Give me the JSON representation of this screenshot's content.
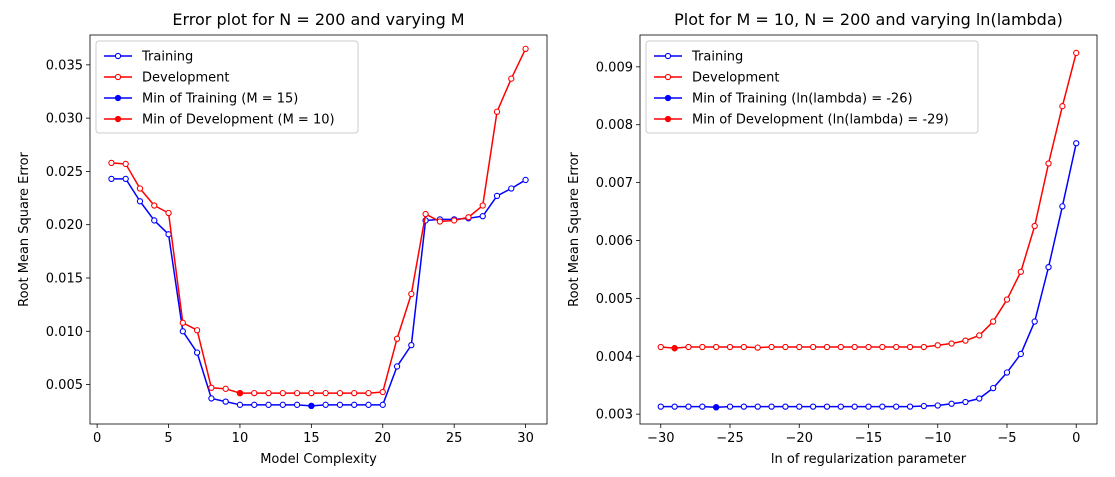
{
  "chart_data": [
    {
      "type": "line",
      "title": "Error plot for N = 200 and varying M",
      "xlabel": "Model Complexity",
      "ylabel": "Root Mean Square Error",
      "xlim": [
        -0.5,
        31.5
      ],
      "ylim": [
        0.0013,
        0.0378
      ],
      "xticks": [
        0,
        5,
        10,
        15,
        20,
        25,
        30
      ],
      "yticks": [
        0.005,
        0.01,
        0.015,
        0.02,
        0.025,
        0.03,
        0.035
      ],
      "ytick_labels": [
        "0.005",
        "0.010",
        "0.015",
        "0.020",
        "0.025",
        "0.030",
        "0.035"
      ],
      "grid": false,
      "legend_position": "upper-left",
      "series": [
        {
          "name": "Training",
          "color": "#0000ff",
          "marker": "open-circle",
          "x": [
            1,
            2,
            3,
            4,
            5,
            6,
            7,
            8,
            9,
            10,
            11,
            12,
            13,
            14,
            15,
            16,
            17,
            18,
            19,
            20,
            21,
            22,
            23,
            24,
            25,
            26,
            27,
            28,
            29,
            30
          ],
          "values": [
            0.0243,
            0.0243,
            0.0222,
            0.0204,
            0.0191,
            0.01,
            0.008,
            0.0037,
            0.0034,
            0.0031,
            0.0031,
            0.0031,
            0.0031,
            0.0031,
            0.003,
            0.0031,
            0.0031,
            0.0031,
            0.0031,
            0.0031,
            0.0067,
            0.0087,
            0.0204,
            0.0205,
            0.0205,
            0.0206,
            0.0208,
            0.0227,
            0.0234,
            0.0242
          ]
        },
        {
          "name": "Development",
          "color": "#ff0000",
          "marker": "open-circle",
          "x": [
            1,
            2,
            3,
            4,
            5,
            6,
            7,
            8,
            9,
            10,
            11,
            12,
            13,
            14,
            15,
            16,
            17,
            18,
            19,
            20,
            21,
            22,
            23,
            24,
            25,
            26,
            27,
            28,
            29,
            30
          ],
          "values": [
            0.0258,
            0.0257,
            0.0234,
            0.0218,
            0.0211,
            0.0108,
            0.0101,
            0.0047,
            0.0046,
            0.0042,
            0.0042,
            0.0042,
            0.0042,
            0.0042,
            0.0042,
            0.0042,
            0.0042,
            0.0042,
            0.0042,
            0.0043,
            0.0093,
            0.0135,
            0.021,
            0.0203,
            0.0204,
            0.0207,
            0.0218,
            0.0306,
            0.0337,
            0.0365
          ]
        },
        {
          "name": "Min of Training (M = 15)",
          "color": "#0000ff",
          "marker": "filled-circle",
          "x": [
            15
          ],
          "values": [
            0.003
          ]
        },
        {
          "name": "Min of Development (M = 10)",
          "color": "#ff0000",
          "marker": "filled-circle",
          "x": [
            10
          ],
          "values": [
            0.0042
          ]
        }
      ]
    },
    {
      "type": "line",
      "title": "Plot for M = 10, N = 200 and varying ln(lambda)",
      "xlabel": "ln of regularization parameter",
      "ylabel": "Root Mean Square Error",
      "xlim": [
        -31.5,
        1.5
      ],
      "ylim": [
        0.00283,
        0.00955
      ],
      "xticks": [
        -30,
        -25,
        -20,
        -15,
        -10,
        -5,
        0
      ],
      "yticks": [
        0.003,
        0.004,
        0.005,
        0.006,
        0.007,
        0.008,
        0.009
      ],
      "ytick_labels": [
        "0.003",
        "0.004",
        "0.005",
        "0.006",
        "0.007",
        "0.008",
        "0.009"
      ],
      "grid": false,
      "legend_position": "upper-left",
      "series": [
        {
          "name": "Training",
          "color": "#0000ff",
          "marker": "open-circle",
          "x": [
            -30,
            -29,
            -28,
            -27,
            -26,
            -25,
            -24,
            -23,
            -22,
            -21,
            -20,
            -19,
            -18,
            -17,
            -16,
            -15,
            -14,
            -13,
            -12,
            -11,
            -10,
            -9,
            -8,
            -7,
            -6,
            -5,
            -4,
            -3,
            -2,
            -1,
            0
          ],
          "values": [
            0.00313,
            0.00313,
            0.00313,
            0.00313,
            0.00312,
            0.00313,
            0.00313,
            0.00313,
            0.00313,
            0.00313,
            0.00313,
            0.00313,
            0.00313,
            0.00313,
            0.00313,
            0.00313,
            0.00313,
            0.00313,
            0.00313,
            0.00314,
            0.00315,
            0.00318,
            0.00321,
            0.00327,
            0.00345,
            0.00372,
            0.00404,
            0.0046,
            0.00554,
            0.00659,
            0.00768
          ]
        },
        {
          "name": "Development",
          "color": "#ff0000",
          "marker": "open-circle",
          "x": [
            -30,
            -29,
            -28,
            -27,
            -26,
            -25,
            -24,
            -23,
            -22,
            -21,
            -20,
            -19,
            -18,
            -17,
            -16,
            -15,
            -14,
            -13,
            -12,
            -11,
            -10,
            -9,
            -8,
            -7,
            -6,
            -5,
            -4,
            -3,
            -2,
            -1,
            0
          ],
          "values": [
            0.00416,
            0.00414,
            0.00416,
            0.00416,
            0.00416,
            0.00416,
            0.00416,
            0.00415,
            0.00416,
            0.00416,
            0.00416,
            0.00416,
            0.00416,
            0.00416,
            0.00416,
            0.00416,
            0.00416,
            0.00416,
            0.00416,
            0.00416,
            0.00419,
            0.00422,
            0.00427,
            0.00436,
            0.0046,
            0.00498,
            0.00546,
            0.00625,
            0.00733,
            0.00832,
            0.00924
          ]
        },
        {
          "name": "Min of Training (ln(lambda) = -26)",
          "color": "#0000ff",
          "marker": "filled-circle",
          "x": [
            -26
          ],
          "values": [
            0.00312
          ]
        },
        {
          "name": "Min of Development (ln(lambda) = -29)",
          "color": "#ff0000",
          "marker": "filled-circle",
          "x": [
            -29
          ],
          "values": [
            0.00414
          ]
        }
      ]
    }
  ]
}
